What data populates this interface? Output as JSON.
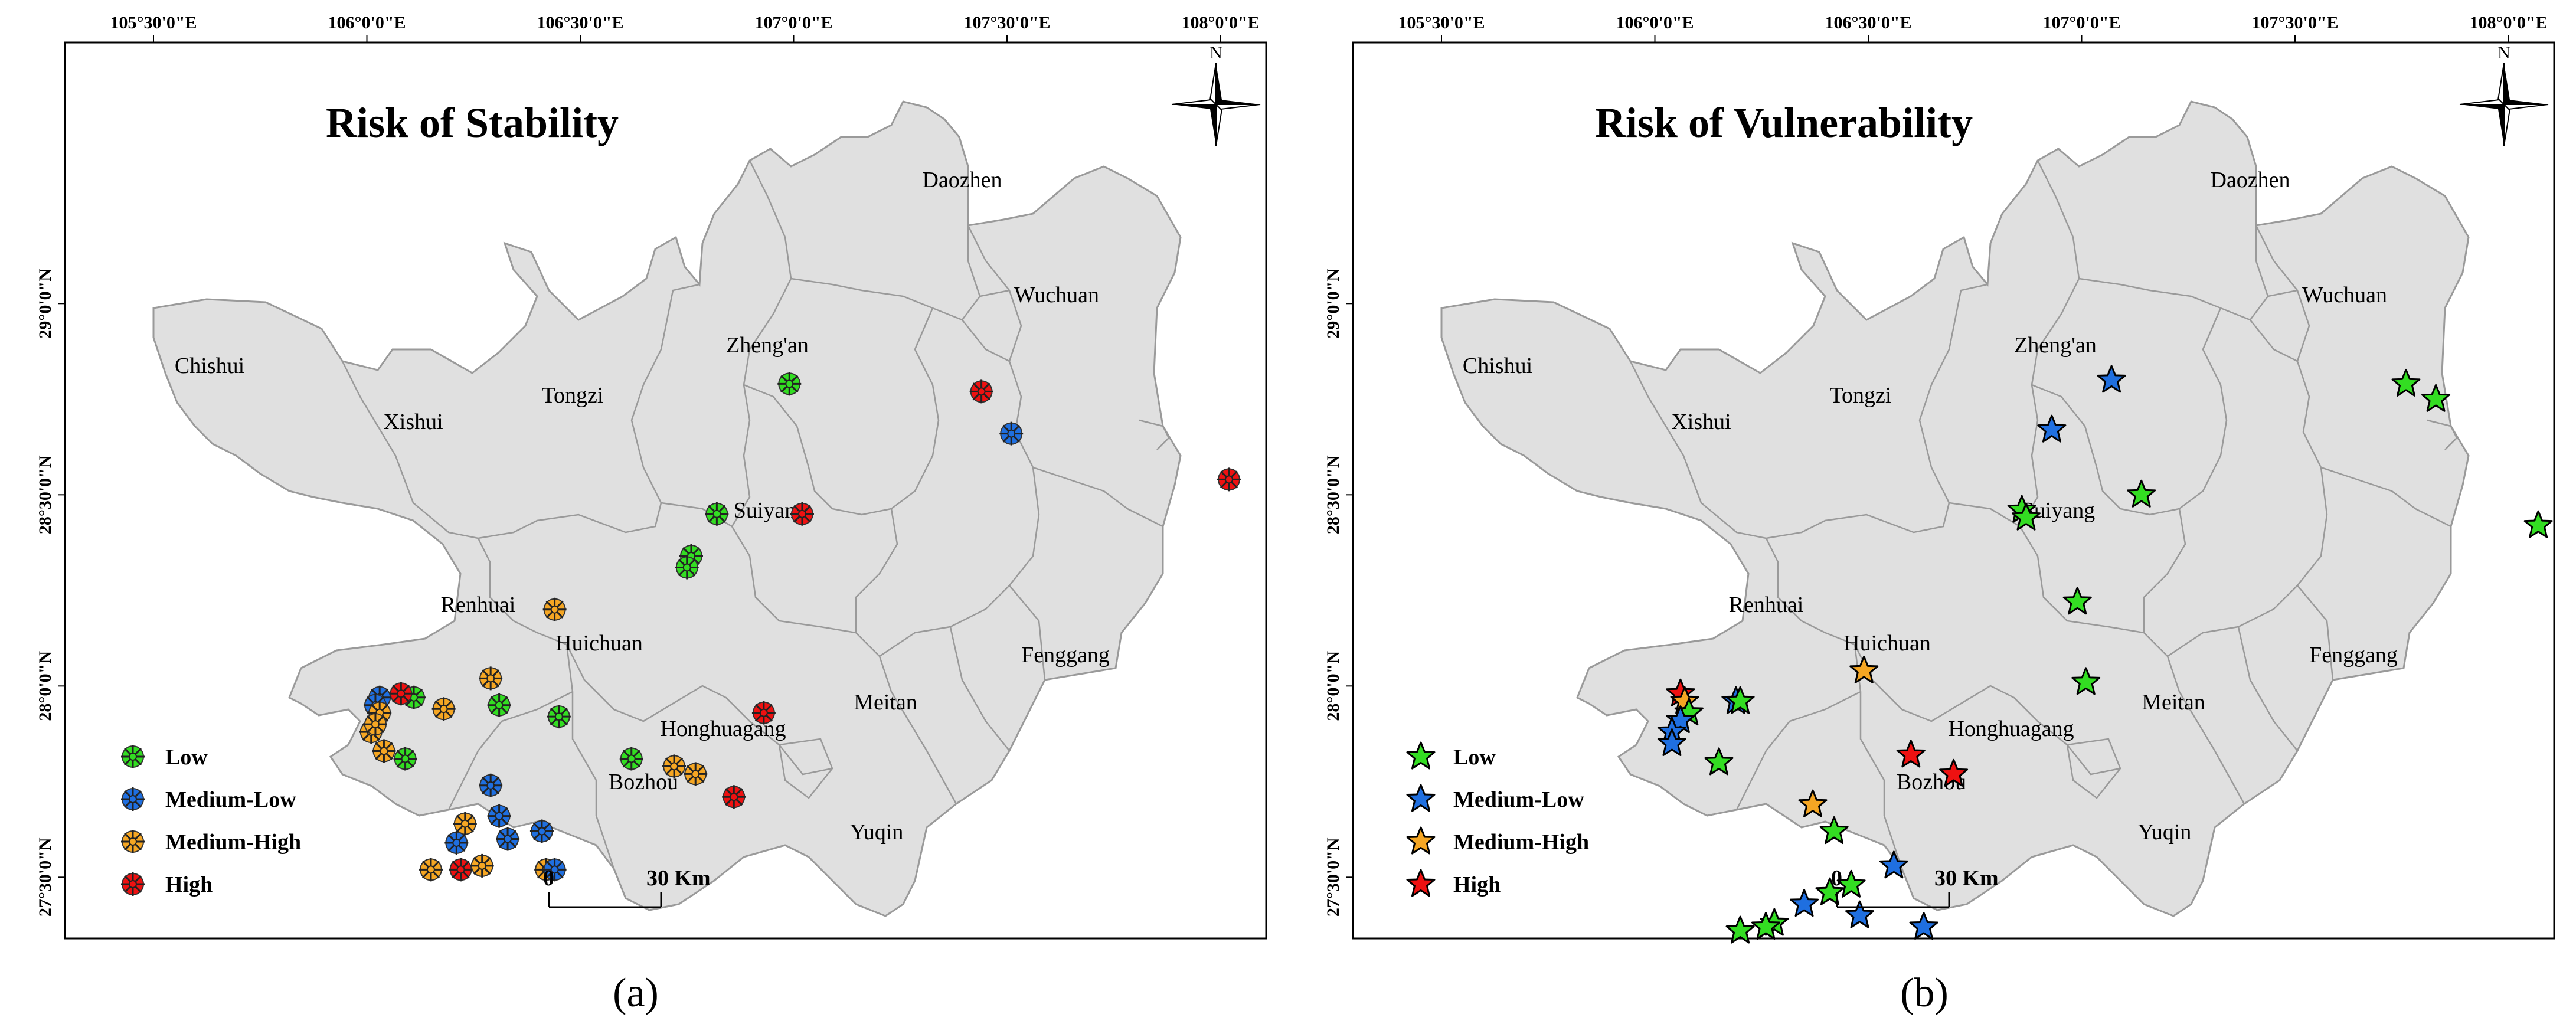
{
  "axes": {
    "x_ticks": [
      "105°30'0\"E",
      "106°0'0\"E",
      "106°30'0\"E",
      "107°0'0\"E",
      "107°30'0\"E",
      "108°0'0\"E"
    ],
    "y_ticks": [
      "29°0'0\"N",
      "28°30'0\"N",
      "28°0'0\"N",
      "27°30'0\"N"
    ]
  },
  "north_label": "N",
  "scale": {
    "zero": "0",
    "end": "30 Km"
  },
  "places": [
    "Daozhen",
    "Wuchuan",
    "Chishui",
    "Xishui",
    "Tongzi",
    "Zheng'an",
    "Suiyang",
    "Renhuai",
    "Huichuan",
    "Fenggang",
    "Meitan",
    "Honghuagang",
    "Bozhou",
    "Yuqin"
  ],
  "legend": [
    {
      "label": "Low",
      "color": "#33dd22"
    },
    {
      "label": "Medium-Low",
      "color": "#1f6fe0"
    },
    {
      "label": "Medium-High",
      "color": "#f5a623"
    },
    {
      "label": "High",
      "color": "#ee1111"
    }
  ],
  "panels": [
    {
      "caption": "(a)",
      "title": "Risk of Stability",
      "marker": "asterisk",
      "points": [
        {
          "lon": 106.99,
          "lat": 28.79,
          "risk": "Low"
        },
        {
          "lon": 106.82,
          "lat": 28.45,
          "risk": "Low"
        },
        {
          "lon": 106.76,
          "lat": 28.34,
          "risk": "Low"
        },
        {
          "lon": 106.75,
          "lat": 28.31,
          "risk": "Low"
        },
        {
          "lon": 106.44,
          "lat": 28.2,
          "risk": "Medium-High"
        },
        {
          "lon": 106.11,
          "lat": 27.97,
          "risk": "Low"
        },
        {
          "lon": 106.18,
          "lat": 27.94,
          "risk": "Medium-High"
        },
        {
          "lon": 106.29,
          "lat": 28.02,
          "risk": "Medium-High"
        },
        {
          "lon": 106.31,
          "lat": 27.95,
          "risk": "Low"
        },
        {
          "lon": 106.08,
          "lat": 27.98,
          "risk": "High"
        },
        {
          "lon": 106.03,
          "lat": 27.97,
          "risk": "Medium-Low"
        },
        {
          "lon": 106.02,
          "lat": 27.95,
          "risk": "Medium-Low"
        },
        {
          "lon": 106.03,
          "lat": 27.93,
          "risk": "Medium-High"
        },
        {
          "lon": 106.01,
          "lat": 27.88,
          "risk": "Medium-High"
        },
        {
          "lon": 106.02,
          "lat": 27.9,
          "risk": "Medium-High"
        },
        {
          "lon": 106.04,
          "lat": 27.83,
          "risk": "Medium-High"
        },
        {
          "lon": 106.09,
          "lat": 27.81,
          "risk": "Low"
        },
        {
          "lon": 106.29,
          "lat": 27.74,
          "risk": "Medium-Low"
        },
        {
          "lon": 106.23,
          "lat": 27.64,
          "risk": "Medium-High"
        },
        {
          "lon": 106.33,
          "lat": 27.6,
          "risk": "Medium-Low"
        },
        {
          "lon": 106.21,
          "lat": 27.59,
          "risk": "Medium-Low"
        },
        {
          "lon": 106.15,
          "lat": 27.52,
          "risk": "Medium-High"
        },
        {
          "lon": 106.22,
          "lat": 27.52,
          "risk": "High"
        },
        {
          "lon": 106.27,
          "lat": 27.53,
          "risk": "Medium-High"
        },
        {
          "lon": 106.42,
          "lat": 27.52,
          "risk": "Medium-High"
        },
        {
          "lon": 106.31,
          "lat": 27.66,
          "risk": "Medium-Low"
        },
        {
          "lon": 106.41,
          "lat": 27.62,
          "risk": "Medium-Low"
        },
        {
          "lon": 106.44,
          "lat": 27.52,
          "risk": "Medium-Low"
        },
        {
          "lon": 106.62,
          "lat": 27.81,
          "risk": "Low"
        },
        {
          "lon": 106.72,
          "lat": 27.79,
          "risk": "Medium-High"
        },
        {
          "lon": 106.77,
          "lat": 27.77,
          "risk": "Medium-High"
        },
        {
          "lon": 106.45,
          "lat": 27.92,
          "risk": "Low"
        },
        {
          "lon": 106.86,
          "lat": 27.71,
          "risk": "High"
        },
        {
          "lon": 106.93,
          "lat": 27.93,
          "risk": "High"
        },
        {
          "lon": 107.02,
          "lat": 28.45,
          "risk": "High"
        },
        {
          "lon": 107.44,
          "lat": 28.77,
          "risk": "High"
        },
        {
          "lon": 107.51,
          "lat": 28.66,
          "risk": "Medium-Low"
        },
        {
          "lon": 108.02,
          "lat": 28.54,
          "risk": "High"
        }
      ]
    },
    {
      "caption": "(b)",
      "title": "Risk of Vulnerability",
      "marker": "star",
      "points": [
        {
          "lon": 107.07,
          "lat": 28.8,
          "risk": "Medium-Low"
        },
        {
          "lon": 106.93,
          "lat": 28.67,
          "risk": "Medium-Low"
        },
        {
          "lon": 106.86,
          "lat": 28.46,
          "risk": "Low"
        },
        {
          "lon": 106.87,
          "lat": 28.44,
          "risk": "Low"
        },
        {
          "lon": 107.14,
          "lat": 28.5,
          "risk": "Low"
        },
        {
          "lon": 106.99,
          "lat": 28.22,
          "risk": "Low"
        },
        {
          "lon": 107.01,
          "lat": 28.01,
          "risk": "Low"
        },
        {
          "lon": 106.49,
          "lat": 28.04,
          "risk": "Medium-High"
        },
        {
          "lon": 106.19,
          "lat": 27.96,
          "risk": "Medium-Low"
        },
        {
          "lon": 106.2,
          "lat": 27.96,
          "risk": "Low"
        },
        {
          "lon": 106.06,
          "lat": 27.98,
          "risk": "High"
        },
        {
          "lon": 106.07,
          "lat": 27.96,
          "risk": "Medium-High"
        },
        {
          "lon": 106.08,
          "lat": 27.93,
          "risk": "Low"
        },
        {
          "lon": 106.06,
          "lat": 27.91,
          "risk": "Medium-Low"
        },
        {
          "lon": 106.04,
          "lat": 27.88,
          "risk": "Medium-Low"
        },
        {
          "lon": 106.04,
          "lat": 27.85,
          "risk": "Medium-Low"
        },
        {
          "lon": 106.15,
          "lat": 27.8,
          "risk": "Low"
        },
        {
          "lon": 106.6,
          "lat": 27.82,
          "risk": "High"
        },
        {
          "lon": 106.7,
          "lat": 27.77,
          "risk": "High"
        },
        {
          "lon": 106.37,
          "lat": 27.69,
          "risk": "Medium-High"
        },
        {
          "lon": 106.42,
          "lat": 27.62,
          "risk": "Low"
        },
        {
          "lon": 106.56,
          "lat": 27.53,
          "risk": "Medium-Low"
        },
        {
          "lon": 106.46,
          "lat": 27.48,
          "risk": "Low"
        },
        {
          "lon": 106.41,
          "lat": 27.46,
          "risk": "Low"
        },
        {
          "lon": 106.35,
          "lat": 27.43,
          "risk": "Medium-Low"
        },
        {
          "lon": 106.28,
          "lat": 27.38,
          "risk": "Low"
        },
        {
          "lon": 106.26,
          "lat": 27.37,
          "risk": "Low"
        },
        {
          "lon": 106.2,
          "lat": 27.36,
          "risk": "Low"
        },
        {
          "lon": 106.48,
          "lat": 27.4,
          "risk": "Medium-Low"
        },
        {
          "lon": 106.63,
          "lat": 27.37,
          "risk": "Medium-Low"
        },
        {
          "lon": 107.76,
          "lat": 28.79,
          "risk": "Low"
        },
        {
          "lon": 107.83,
          "lat": 28.75,
          "risk": "Low"
        },
        {
          "lon": 108.07,
          "lat": 28.42,
          "risk": "Low"
        }
      ]
    }
  ]
}
